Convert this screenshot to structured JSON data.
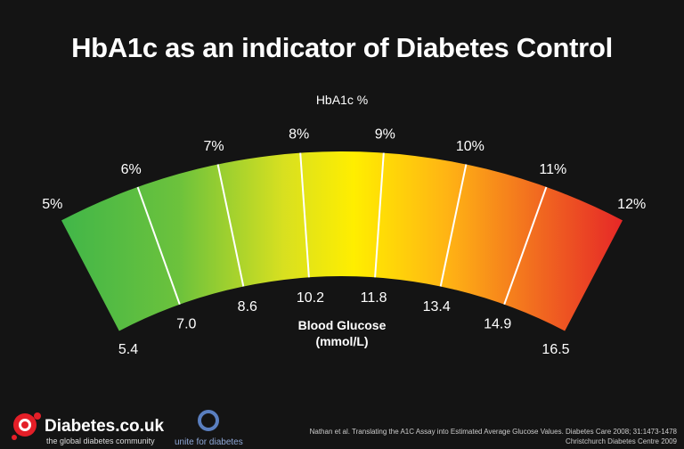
{
  "title": "HbA1c as an indicator of Diabetes Control",
  "outer_label": "HbA1c %",
  "inner_label_line1": "Blood Glucose",
  "inner_label_line2": "(mmol/L)",
  "hba1c_labels": [
    "5%",
    "6%",
    "7%",
    "8%",
    "9%",
    "10%",
    "11%",
    "12%"
  ],
  "glucose_labels": [
    "5.4",
    "7.0",
    "8.6",
    "10.2",
    "11.8",
    "13.4",
    "14.9",
    "16.5"
  ],
  "colors": {
    "low": "#3db54a",
    "mid": "#ffee00",
    "high": "#e8202a",
    "background": "#141414"
  },
  "footer": {
    "logo_text": "Diabetes.co.uk",
    "logo_tagline": "the global diabetes community",
    "partner_text": "unite for diabetes",
    "source_line1": "Nathan et al. Translating the A1C Assay into Estimated Average Glucose Values. Diabetes Care 2008; 31:1473-1478",
    "source_line2": "Christchurch Diabetes Centre 2009"
  }
}
